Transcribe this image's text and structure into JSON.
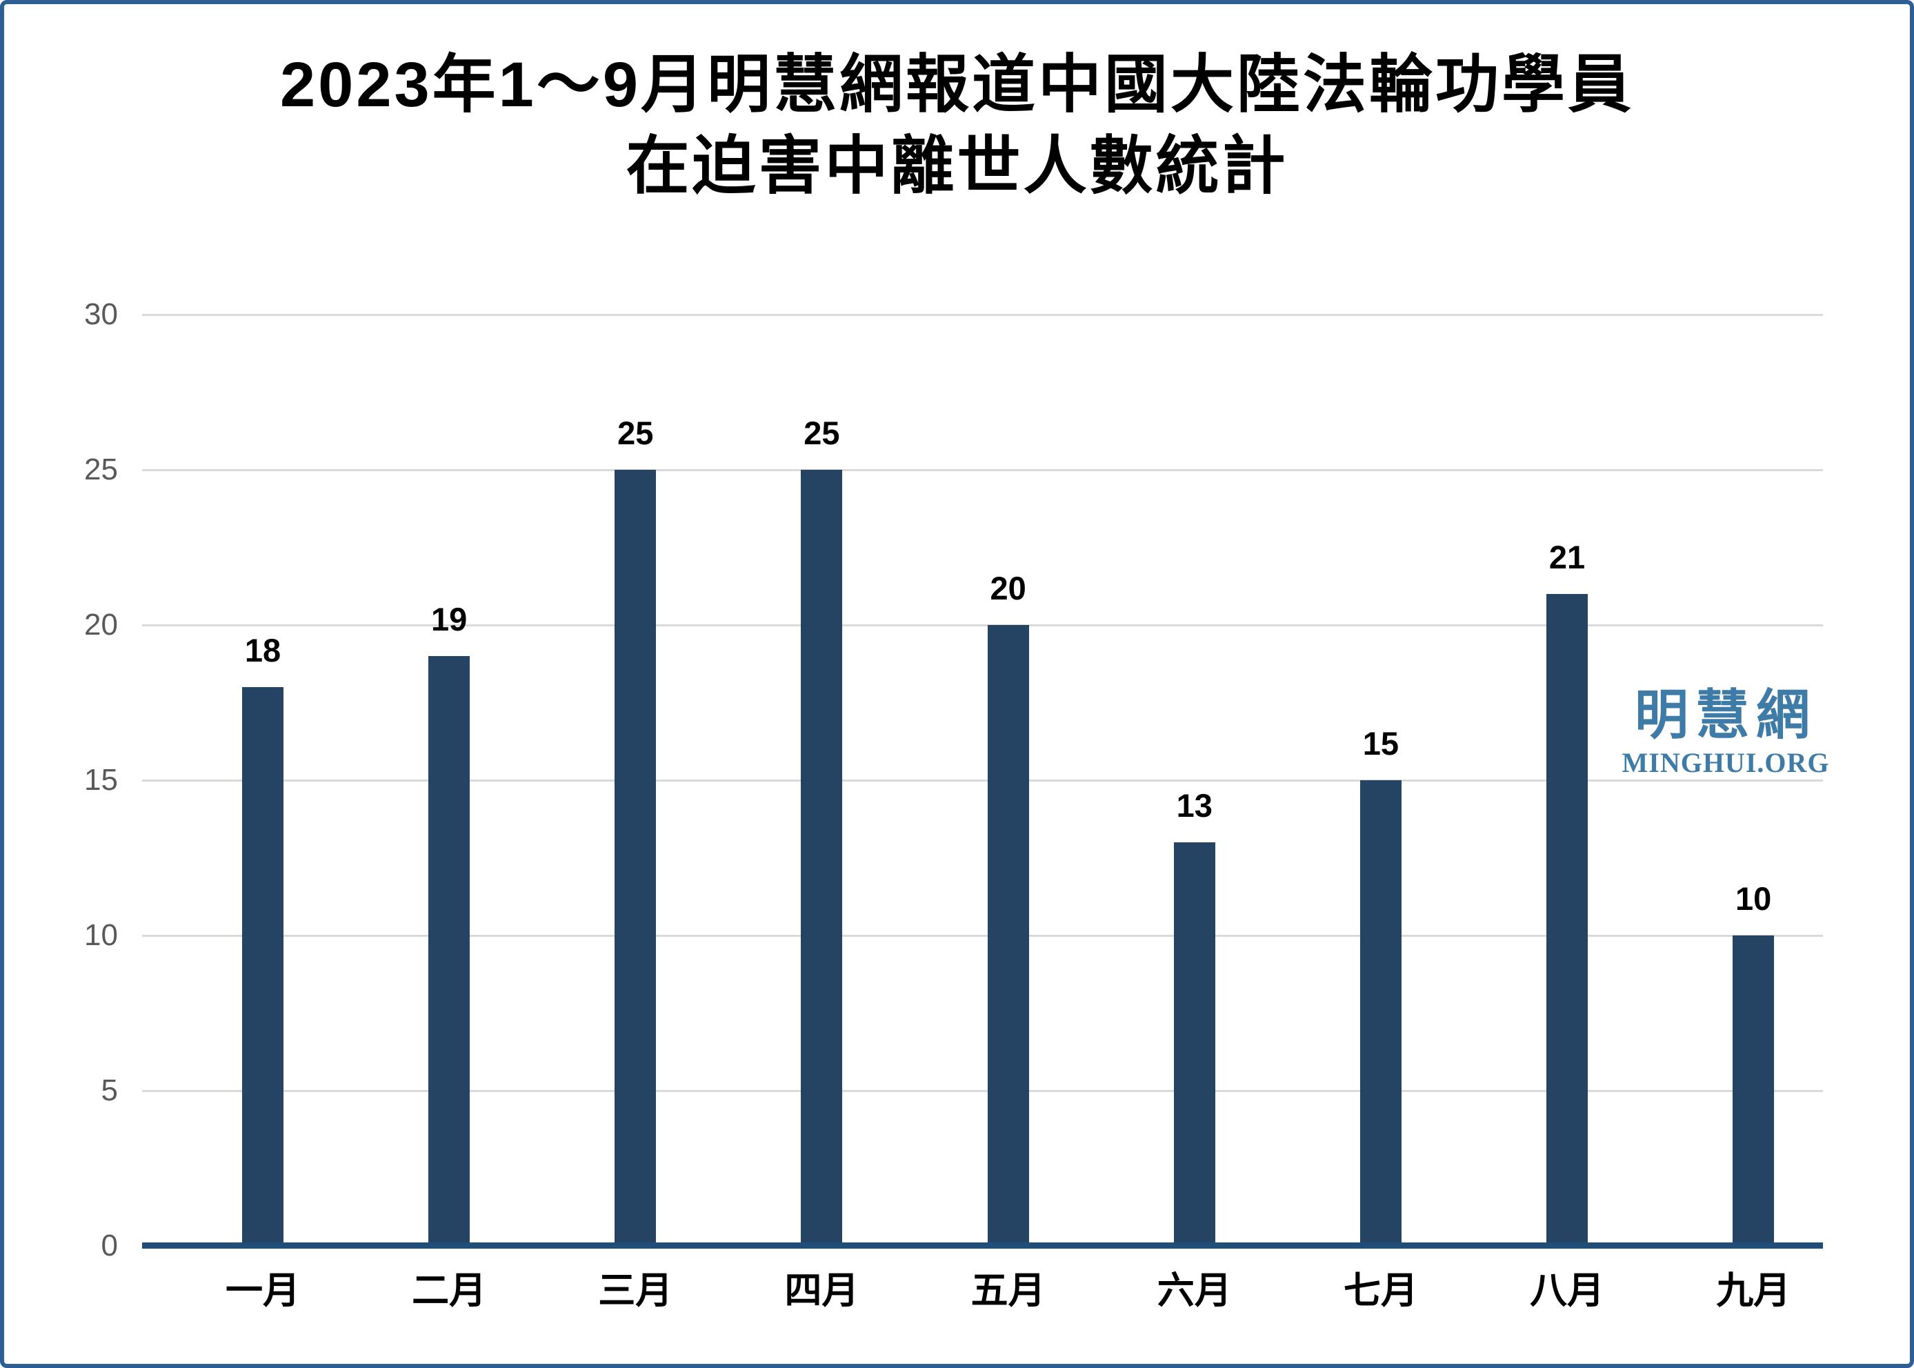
{
  "chart": {
    "title_line1": "2023年1～9月明慧網報道中國大陸法輪功學員",
    "title_line2": "在迫害中離世人數統計"
  },
  "logo": {
    "chinese": "明慧網",
    "english": "MINGHUI.ORG"
  },
  "colors": {
    "bar": "#254463",
    "axis": "#1F4E79",
    "grid": "#D9D9D9",
    "tick_label": "#595959",
    "data_label": "#000000",
    "border": "#2E5E96",
    "logo": "#3E7BA6"
  },
  "chart_data": {
    "type": "bar",
    "title": "2023年1～9月明慧網報道中國大陸法輪功學員 在迫害中離世人數統計",
    "categories": [
      "一月",
      "二月",
      "三月",
      "四月",
      "五月",
      "六月",
      "七月",
      "八月",
      "九月"
    ],
    "values": [
      18,
      19,
      25,
      25,
      20,
      13,
      15,
      21,
      10
    ],
    "xlabel": "",
    "ylabel": "",
    "ylim": [
      0,
      30
    ],
    "yticks": [
      0,
      5,
      10,
      15,
      20,
      25,
      30
    ],
    "grid": true,
    "legend": false,
    "data_labels": true
  }
}
